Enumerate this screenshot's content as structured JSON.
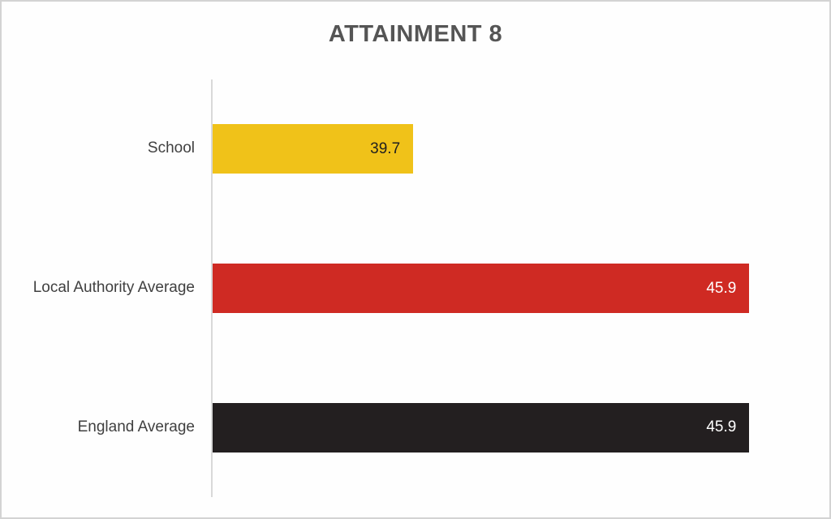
{
  "window": {
    "background": "#FEFEFE",
    "border_color": "#D3D3D3"
  },
  "chart_data": {
    "type": "bar",
    "orientation": "horizontal",
    "title": "ATTAINMENT 8",
    "title_color": "#555555",
    "categories": [
      "School",
      "Local Authority Average",
      "England Average"
    ],
    "values": [
      39.7,
      45.9,
      45.9
    ],
    "value_labels": [
      "39.7",
      "45.9",
      "45.9"
    ],
    "bar_colors": [
      "#F0C219",
      "#CF2A23",
      "#231F20"
    ],
    "value_label_colors": [
      "#1F1F1F",
      "#FFFFFF",
      "#FFFFFF"
    ],
    "category_label_color": "#404040",
    "xlabel": "",
    "ylabel": "",
    "xlim": [
      36,
      46
    ],
    "grid": false,
    "legend": "none",
    "axis_line_color": "#D9D9D9",
    "value_axis_tick_labels_visible": false
  }
}
